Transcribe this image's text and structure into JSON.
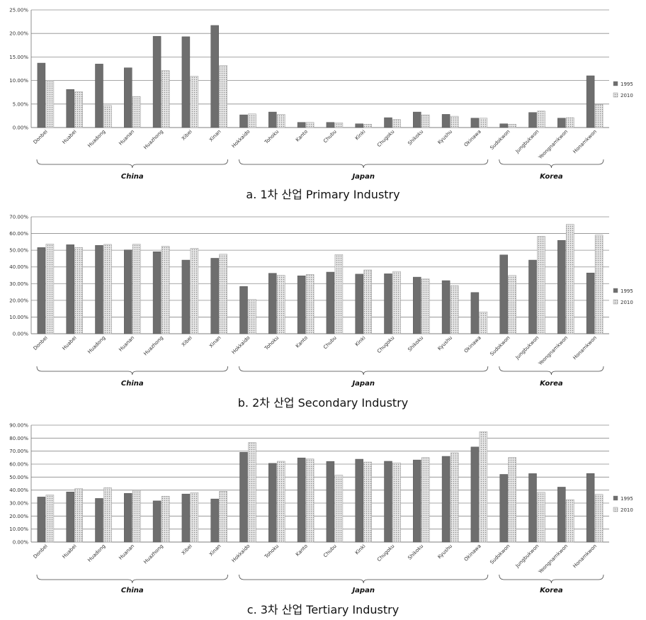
{
  "colors": {
    "s1995": "#6e6e6e",
    "s2010": "#e4e4e4",
    "grid": "#8c8c8c"
  },
  "chart_data": [
    {
      "type": "bar",
      "title": "a. 1차 산업 Primary Industry",
      "ylim": [
        0,
        0.25
      ],
      "yticks": [
        "0.00%",
        "5.00%",
        "10.00%",
        "15.00%",
        "20.00%",
        "25.00%"
      ],
      "grid": true,
      "legend_position": "right",
      "categories": [
        "Donbei",
        "Huabei",
        "Huadong",
        "Huanan",
        "Huazhong",
        "Xibei",
        "Xinan",
        "Hokkaido",
        "Tohoku",
        "Kanto",
        "Chubu",
        "Kinki",
        "Chugoku",
        "Shikoku",
        "Kyushu",
        "Okinawa",
        "Sudokwon",
        "Jungbukwon",
        "Yeongnamkwon",
        "Honamkwon"
      ],
      "series": [
        {
          "name": "1995",
          "values": [
            0.137,
            0.081,
            0.135,
            0.127,
            0.194,
            0.193,
            0.217,
            0.027,
            0.033,
            0.011,
            0.011,
            0.008,
            0.021,
            0.033,
            0.028,
            0.02,
            0.008,
            0.032,
            0.02,
            0.11
          ]
        },
        {
          "name": "2010",
          "values": [
            0.1,
            0.076,
            0.047,
            0.066,
            0.121,
            0.109,
            0.132,
            0.029,
            0.028,
            0.011,
            0.01,
            0.007,
            0.017,
            0.027,
            0.024,
            0.02,
            0.007,
            0.035,
            0.021,
            0.049
          ]
        }
      ],
      "groups": [
        {
          "label": "China",
          "from": 0,
          "to": 6
        },
        {
          "label": "Japan",
          "from": 7,
          "to": 15
        },
        {
          "label": "Korea",
          "from": 16,
          "to": 19
        }
      ]
    },
    {
      "type": "bar",
      "title": "b. 2차 산업 Secondary Industry",
      "ylim": [
        0,
        0.7
      ],
      "yticks": [
        "0.00%",
        "10.00%",
        "20.00%",
        "30.00%",
        "40.00%",
        "50.00%",
        "60.00%",
        "70.00%"
      ],
      "grid": true,
      "legend_position": "right",
      "categories": [
        "Donbei",
        "Huabei",
        "Huadong",
        "Huanan",
        "Huazhong",
        "Xibei",
        "Xinan",
        "Hokkaido",
        "Tohoku",
        "Kanto",
        "Chubu",
        "Kinki",
        "Chugoku",
        "Shikoku",
        "Kyushu",
        "Okinawa",
        "Sudokwon",
        "Jungbukwon",
        "Yeongnamkwon",
        "Honamkwon"
      ],
      "series": [
        {
          "name": "1995",
          "values": [
            0.516,
            0.533,
            0.529,
            0.502,
            0.491,
            0.441,
            0.452,
            0.283,
            0.362,
            0.347,
            0.369,
            0.357,
            0.359,
            0.339,
            0.318,
            0.247,
            0.472,
            0.441,
            0.559,
            0.364
          ]
        },
        {
          "name": "2010",
          "values": [
            0.537,
            0.516,
            0.535,
            0.536,
            0.524,
            0.512,
            0.476,
            0.206,
            0.35,
            0.355,
            0.474,
            0.382,
            0.373,
            0.328,
            0.288,
            0.131,
            0.349,
            0.583,
            0.655,
            0.591
          ]
        }
      ],
      "groups": [
        {
          "label": "China",
          "from": 0,
          "to": 6
        },
        {
          "label": "Japan",
          "from": 7,
          "to": 15
        },
        {
          "label": "Korea",
          "from": 16,
          "to": 19
        }
      ]
    },
    {
      "type": "bar",
      "title": "c. 3차 산업 Tertiary Industry",
      "ylim": [
        0,
        0.9
      ],
      "yticks": [
        "0.00%",
        "10.00%",
        "20.00%",
        "30.00%",
        "40.00%",
        "50.00%",
        "60.00%",
        "70.00%",
        "80.00%",
        "90.00%"
      ],
      "grid": true,
      "legend_position": "right",
      "categories": [
        "Donbei",
        "Huabei",
        "Huadong",
        "Huanan",
        "Huazhong",
        "Xibei",
        "Xinan",
        "Hokkaido",
        "Tohoku",
        "Kanto",
        "Chubu",
        "Kinki",
        "Chugoku",
        "Shikoku",
        "Kyushu",
        "Okinawa",
        "Sudokwon",
        "Jungbukwon",
        "Yeongnamkwon",
        "Honamkwon"
      ],
      "series": [
        {
          "name": "1995",
          "values": [
            0.347,
            0.386,
            0.336,
            0.375,
            0.317,
            0.37,
            0.332,
            0.691,
            0.606,
            0.648,
            0.621,
            0.638,
            0.622,
            0.632,
            0.66,
            0.732,
            0.521,
            0.527,
            0.423,
            0.528
          ]
        },
        {
          "name": "2010",
          "values": [
            0.363,
            0.412,
            0.418,
            0.398,
            0.353,
            0.381,
            0.391,
            0.766,
            0.622,
            0.64,
            0.515,
            0.616,
            0.61,
            0.65,
            0.688,
            0.85,
            0.651,
            0.384,
            0.327,
            0.367
          ]
        }
      ],
      "groups": [
        {
          "label": "China",
          "from": 0,
          "to": 6
        },
        {
          "label": "Japan",
          "from": 7,
          "to": 15
        },
        {
          "label": "Korea",
          "from": 16,
          "to": 19
        }
      ]
    }
  ]
}
